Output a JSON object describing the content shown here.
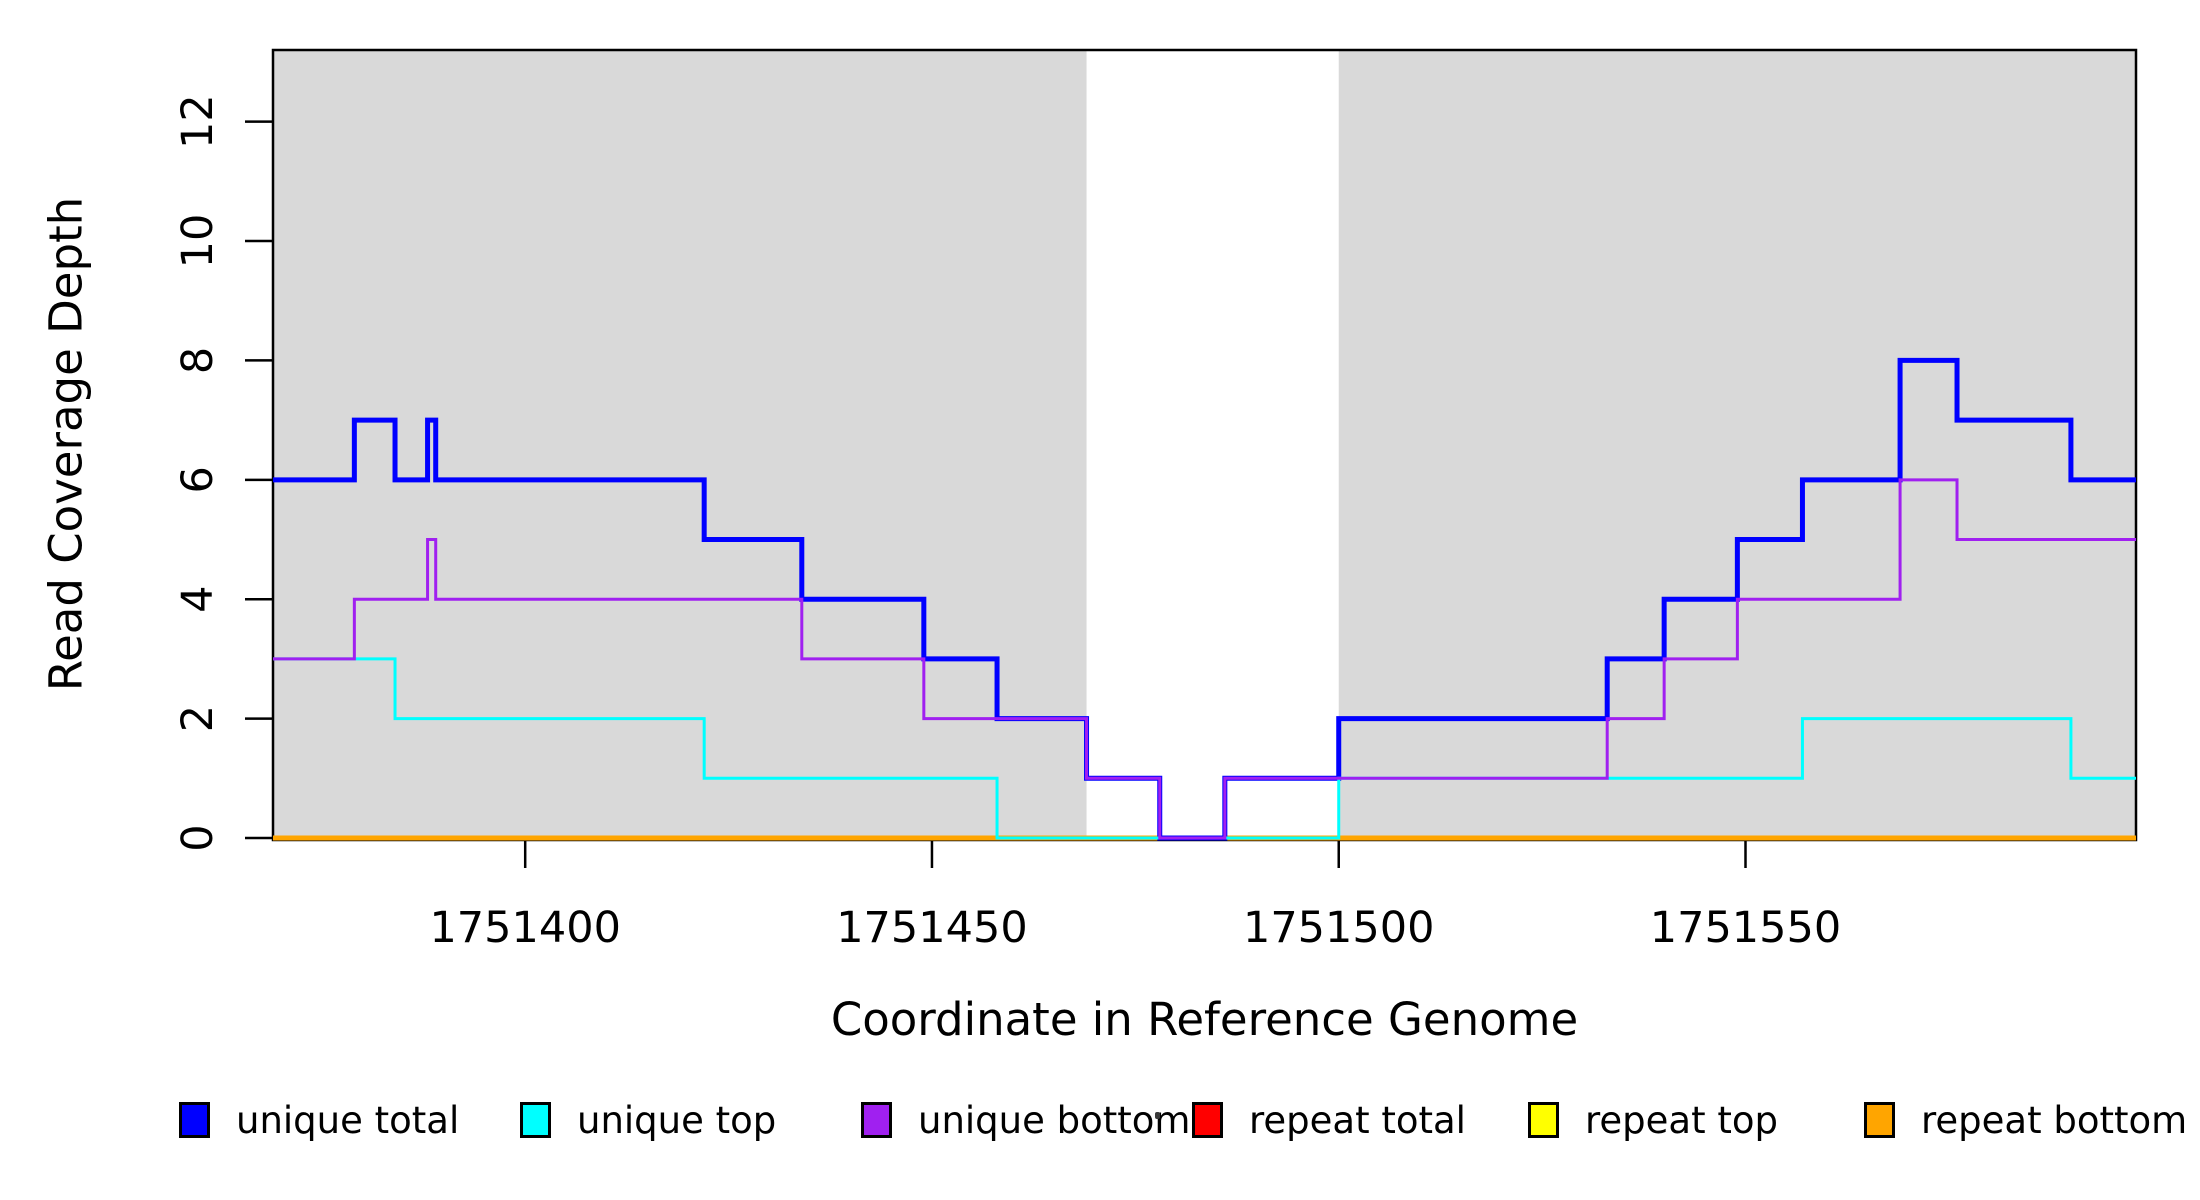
{
  "chart_data": {
    "type": "line",
    "subtype": "step-coverage",
    "title": "",
    "xlabel": "Coordinate in Reference Genome",
    "ylabel": "Read Coverage Depth",
    "xlim": [
      1751369,
      1751598
    ],
    "ylim": [
      0,
      13.2
    ],
    "x_ticks": [
      1751400,
      1751450,
      1751500,
      1751550
    ],
    "y_ticks": [
      0,
      2,
      4,
      6,
      8,
      10,
      12
    ],
    "grid": false,
    "background_color": "#ffffff",
    "shade_color": "#d9d9d9",
    "legend_position": "bottom",
    "shaded_regions": [
      {
        "name": "unique-region-left",
        "x0": 1751369,
        "x1": 1751469
      },
      {
        "name": "unique-region-right",
        "x0": 1751500,
        "x1": 1751598
      }
    ],
    "series": [
      {
        "name": "repeat total",
        "color": "#FF0000",
        "width": 3,
        "steps": [
          [
            1751369,
            0
          ],
          [
            1751598,
            0
          ]
        ]
      },
      {
        "name": "repeat top",
        "color": "#FFFF00",
        "width": 3,
        "steps": [
          [
            1751369,
            0
          ],
          [
            1751598,
            0
          ]
        ]
      },
      {
        "name": "repeat bottom",
        "color": "#FFA500",
        "width": 5,
        "steps": [
          [
            1751369,
            0
          ],
          [
            1751598,
            0
          ]
        ]
      },
      {
        "name": "unique total",
        "color": "#0000FF",
        "width": 5,
        "steps": [
          [
            1751369,
            6
          ],
          [
            1751379,
            7
          ],
          [
            1751384,
            6
          ],
          [
            1751388,
            7
          ],
          [
            1751389,
            6
          ],
          [
            1751422,
            5
          ],
          [
            1751434,
            4
          ],
          [
            1751449,
            3
          ],
          [
            1751458,
            2
          ],
          [
            1751469,
            1
          ],
          [
            1751478,
            0
          ],
          [
            1751486,
            1
          ],
          [
            1751500,
            2
          ],
          [
            1751533,
            3
          ],
          [
            1751540,
            4
          ],
          [
            1751549,
            5
          ],
          [
            1751557,
            6
          ],
          [
            1751569,
            8
          ],
          [
            1751576,
            7
          ],
          [
            1751590,
            6
          ],
          [
            1751598,
            6
          ]
        ]
      },
      {
        "name": "unique top",
        "color": "#00FFFF",
        "width": 3,
        "steps": [
          [
            1751369,
            3
          ],
          [
            1751384,
            2
          ],
          [
            1751422,
            1
          ],
          [
            1751458,
            0
          ],
          [
            1751500,
            1
          ],
          [
            1751557,
            2
          ],
          [
            1751590,
            1
          ],
          [
            1751598,
            1
          ]
        ]
      },
      {
        "name": "unique bottom",
        "color": "#A020F0",
        "width": 3,
        "steps": [
          [
            1751369,
            3
          ],
          [
            1751379,
            4
          ],
          [
            1751388,
            5
          ],
          [
            1751389,
            4
          ],
          [
            1751434,
            3
          ],
          [
            1751449,
            2
          ],
          [
            1751469,
            1
          ],
          [
            1751478,
            0
          ],
          [
            1751486,
            1
          ],
          [
            1751533,
            2
          ],
          [
            1751540,
            3
          ],
          [
            1751549,
            4
          ],
          [
            1751569,
            6
          ],
          [
            1751576,
            5
          ],
          [
            1751598,
            5
          ]
        ]
      }
    ],
    "legend": [
      {
        "label": "unique total",
        "color": "#0000FF"
      },
      {
        "label": "unique top",
        "color": "#00FFFF"
      },
      {
        "label": "unique bottom",
        "color": "#A020F0"
      },
      {
        "label": "repeat total",
        "color": "#FF0000"
      },
      {
        "label": "repeat top",
        "color": "#FFFF00"
      },
      {
        "label": "repeat bottom",
        "color": "#FFA500"
      }
    ]
  }
}
